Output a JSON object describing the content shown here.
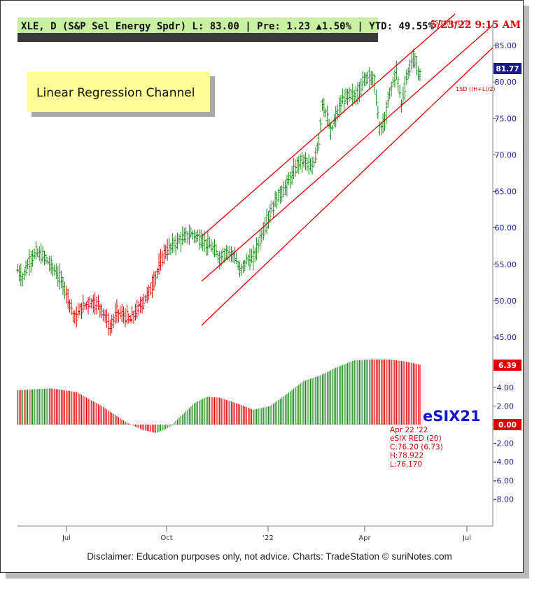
{
  "header": {
    "text": "XLE, D (S&P Sel Energy Spdr)  L: 83.00  |  Pre: 1.23 ▲1.50%  |  YTD: 49.55%",
    "bg_color": "#c8f0a0"
  },
  "timestamp": "5/23/22 9:15 AM",
  "note": {
    "text": "Linear Regression Channel",
    "bg_color": "#ffff99"
  },
  "channel_labels": {
    "upper": "1SD ((H+L)/2)",
    "lower": "1SD ((H+L)/2)"
  },
  "price_tag": {
    "value": "81.77",
    "color": "#1a1a8c"
  },
  "indicator": {
    "title": "eSIX21",
    "value_tag": "6.39",
    "zero_tag": "0.00",
    "tag_color": "#e00000",
    "info_lines": [
      "Apr 22 '22",
      "eSIX RED (20)",
      "C:76.20 (6.73)",
      "H:78.922",
      "L:76.170"
    ]
  },
  "footer": "Disclaimer: Education purposes only, not advice.    Charts: TradeStation    © suriNotes.com",
  "chart_data": {
    "type": "bar",
    "symbol": "XLE",
    "x_ticks": [
      "Jul",
      "Oct",
      "'22",
      "Apr",
      "Jul"
    ],
    "price_axis": {
      "ticks": [
        "85.00",
        "80.00",
        "75.00",
        "70.00",
        "65.00",
        "60.00",
        "55.00",
        "50.00",
        "45.00"
      ],
      "ylim": [
        41,
        89
      ]
    },
    "indicator_axis": {
      "ticks": [
        "4.00",
        "2.00",
        "0.00",
        "-2.00",
        "-4.00",
        "-6.00",
        "-8.00"
      ],
      "ylim": [
        -10,
        7.6
      ]
    },
    "colors": {
      "up": "#1a8a1a",
      "down": "#e00000",
      "channel": "#e00000"
    },
    "price_series": [
      {
        "t": 0,
        "close": 54.2
      },
      {
        "t": 6,
        "close": 53.2
      },
      {
        "t": 14,
        "close": 55.4
      },
      {
        "t": 22,
        "close": 56.6
      },
      {
        "t": 32,
        "close": 56.0
      },
      {
        "t": 42,
        "close": 54.5
      },
      {
        "t": 52,
        "close": 52.8
      },
      {
        "t": 60,
        "close": 50.5
      },
      {
        "t": 68,
        "close": 47.5
      },
      {
        "t": 76,
        "close": 49.0
      },
      {
        "t": 86,
        "close": 49.8
      },
      {
        "t": 96,
        "close": 49.5
      },
      {
        "t": 104,
        "close": 48.0
      },
      {
        "t": 110,
        "close": 46.2
      },
      {
        "t": 118,
        "close": 48.5
      },
      {
        "t": 126,
        "close": 48.0
      },
      {
        "t": 134,
        "close": 47.4
      },
      {
        "t": 142,
        "close": 48.6
      },
      {
        "t": 150,
        "close": 50.0
      },
      {
        "t": 158,
        "close": 51.5
      },
      {
        "t": 166,
        "close": 54.0
      },
      {
        "t": 174,
        "close": 56.5
      },
      {
        "t": 184,
        "close": 57.6
      },
      {
        "t": 196,
        "close": 58.6
      },
      {
        "t": 208,
        "close": 59.2
      },
      {
        "t": 220,
        "close": 58.2
      },
      {
        "t": 232,
        "close": 57.2
      },
      {
        "t": 240,
        "close": 55.8
      },
      {
        "t": 250,
        "close": 56.8
      },
      {
        "t": 258,
        "close": 56.2
      },
      {
        "t": 264,
        "close": 54.0
      },
      {
        "t": 272,
        "close": 55.5
      },
      {
        "t": 280,
        "close": 55.8
      },
      {
        "t": 290,
        "close": 59.0
      },
      {
        "t": 298,
        "close": 61.5
      },
      {
        "t": 308,
        "close": 64.0
      },
      {
        "t": 318,
        "close": 65.5
      },
      {
        "t": 326,
        "close": 67.2
      },
      {
        "t": 334,
        "close": 69.0
      },
      {
        "t": 342,
        "close": 69.2
      },
      {
        "t": 350,
        "close": 68.0
      },
      {
        "t": 358,
        "close": 72.0
      },
      {
        "t": 362,
        "close": 77.0
      },
      {
        "t": 366,
        "close": 76.0
      },
      {
        "t": 372,
        "close": 73.0
      },
      {
        "t": 378,
        "close": 75.2
      },
      {
        "t": 386,
        "close": 77.5
      },
      {
        "t": 394,
        "close": 78.2
      },
      {
        "t": 402,
        "close": 78.0
      },
      {
        "t": 410,
        "close": 80.0
      },
      {
        "t": 418,
        "close": 81.0
      },
      {
        "t": 424,
        "close": 80.0
      },
      {
        "t": 430,
        "close": 73.5
      },
      {
        "t": 436,
        "close": 74.5
      },
      {
        "t": 442,
        "close": 78.5
      },
      {
        "t": 450,
        "close": 81.5
      },
      {
        "t": 456,
        "close": 77.0
      },
      {
        "t": 462,
        "close": 80.5
      },
      {
        "t": 470,
        "close": 83.5
      },
      {
        "t": 474,
        "close": 82.0
      },
      {
        "t": 478,
        "close": 81.0
      }
    ],
    "esix_series": [
      {
        "t": 0,
        "v": 3.7
      },
      {
        "t": 40,
        "v": 3.9
      },
      {
        "t": 70,
        "v": 3.5
      },
      {
        "t": 100,
        "v": 2.0
      },
      {
        "t": 130,
        "v": 0.2
      },
      {
        "t": 150,
        "v": -0.6
      },
      {
        "t": 165,
        "v": -0.9
      },
      {
        "t": 180,
        "v": -0.3
      },
      {
        "t": 195,
        "v": 1.0
      },
      {
        "t": 210,
        "v": 2.3
      },
      {
        "t": 225,
        "v": 3.0
      },
      {
        "t": 240,
        "v": 2.9
      },
      {
        "t": 260,
        "v": 2.3
      },
      {
        "t": 280,
        "v": 1.6
      },
      {
        "t": 300,
        "v": 2.0
      },
      {
        "t": 320,
        "v": 3.3
      },
      {
        "t": 340,
        "v": 4.7
      },
      {
        "t": 360,
        "v": 5.3
      },
      {
        "t": 380,
        "v": 6.2
      },
      {
        "t": 400,
        "v": 6.9
      },
      {
        "t": 420,
        "v": 7.0
      },
      {
        "t": 440,
        "v": 7.0
      },
      {
        "t": 460,
        "v": 6.8
      },
      {
        "t": 480,
        "v": 6.4
      }
    ]
  }
}
